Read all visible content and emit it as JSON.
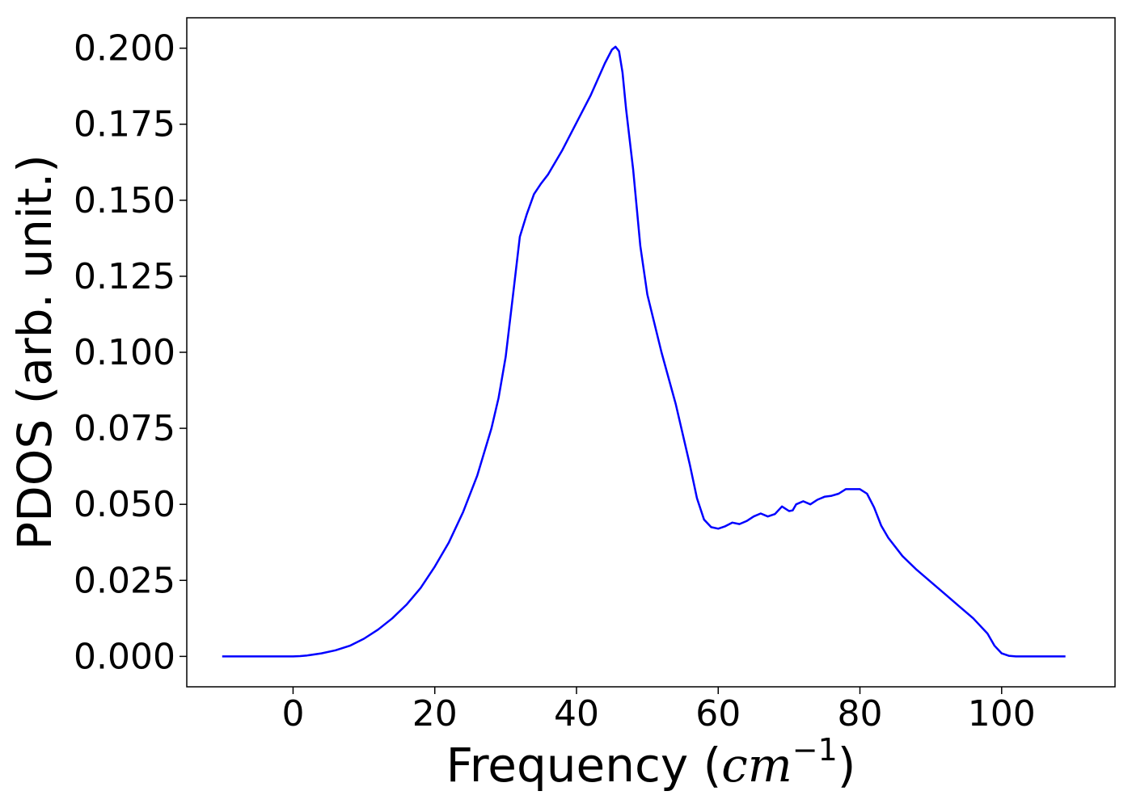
{
  "chart_data": {
    "type": "line",
    "title": "",
    "xlabel": "Frequency",
    "xlabel_unit": "cm",
    "xlabel_unit_exp": "−1",
    "ylabel": "PDOS (arb. unit.)",
    "xlim": [
      -15,
      116
    ],
    "ylim": [
      -0.01,
      0.21
    ],
    "xticks": [
      0,
      20,
      40,
      60,
      80,
      100
    ],
    "xtick_labels": [
      "0",
      "20",
      "40",
      "60",
      "80",
      "100"
    ],
    "yticks": [
      0.0,
      0.025,
      0.05,
      0.075,
      0.1,
      0.125,
      0.15,
      0.175,
      0.2
    ],
    "ytick_labels": [
      "0.000",
      "0.025",
      "0.050",
      "0.075",
      "0.100",
      "0.125",
      "0.150",
      "0.175",
      "0.200"
    ],
    "grid": false,
    "legend": "none",
    "series": [
      {
        "color": "#0000ff",
        "x": [
          -10,
          0,
          1,
          2,
          4,
          6,
          8,
          10,
          12,
          14,
          16,
          18,
          20,
          22,
          24,
          26,
          28,
          29,
          30,
          31,
          32,
          33,
          34,
          35,
          36,
          38,
          40,
          42,
          44,
          45,
          45.5,
          46,
          46.5,
          47,
          48,
          49,
          50,
          52,
          54,
          56,
          57,
          58,
          59,
          60,
          61,
          62,
          63,
          64,
          65,
          66,
          67,
          68,
          69,
          70,
          70.5,
          71,
          72,
          73,
          74,
          75,
          76,
          77,
          78,
          79,
          80,
          81,
          82,
          83,
          84,
          86,
          88,
          90,
          92,
          94,
          96,
          98,
          99,
          100,
          101,
          102,
          105,
          109
        ],
        "y": [
          0.0,
          0.0,
          0.0001,
          0.0003,
          0.001,
          0.002,
          0.0035,
          0.0058,
          0.0088,
          0.0125,
          0.017,
          0.0225,
          0.0295,
          0.0375,
          0.0475,
          0.0595,
          0.075,
          0.085,
          0.0985,
          0.118,
          0.138,
          0.1455,
          0.152,
          0.1555,
          0.1585,
          0.1665,
          0.1755,
          0.1845,
          0.195,
          0.1995,
          0.2005,
          0.199,
          0.192,
          0.18,
          0.16,
          0.135,
          0.119,
          0.1,
          0.083,
          0.063,
          0.052,
          0.045,
          0.0425,
          0.042,
          0.0428,
          0.044,
          0.0435,
          0.0445,
          0.046,
          0.047,
          0.046,
          0.0468,
          0.0493,
          0.0478,
          0.048,
          0.05,
          0.051,
          0.05,
          0.0515,
          0.0525,
          0.0528,
          0.0535,
          0.055,
          0.055,
          0.055,
          0.0535,
          0.049,
          0.043,
          0.039,
          0.033,
          0.0285,
          0.0245,
          0.0205,
          0.0165,
          0.0125,
          0.0075,
          0.0035,
          0.001,
          0.0002,
          0.0,
          0.0,
          0.0
        ]
      }
    ]
  }
}
